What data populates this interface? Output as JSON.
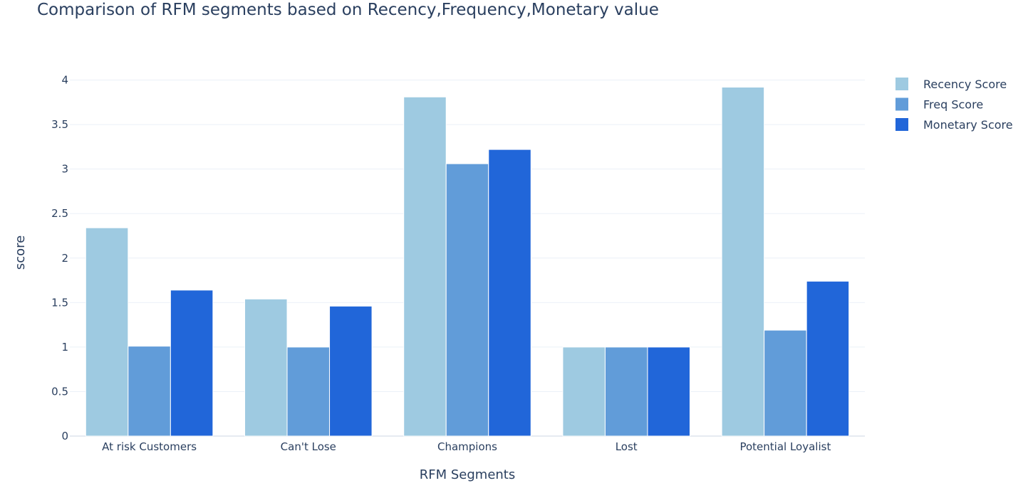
{
  "chart_data": {
    "type": "bar",
    "title": "Comparison of RFM segments based on Recency,Frequency,Monetary value",
    "xlabel": "RFM Segments",
    "ylabel": "score",
    "categories": [
      "At risk Customers",
      "Can't Lose",
      "Champions",
      "Lost",
      "Potential Loyalist"
    ],
    "series": [
      {
        "name": "Recency Score",
        "color": "#9ecae1",
        "values": [
          2.34,
          1.54,
          3.81,
          1.0,
          3.92
        ]
      },
      {
        "name": "Freq Score",
        "color": "#619cd9",
        "values": [
          1.01,
          1.0,
          3.06,
          1.0,
          1.19
        ]
      },
      {
        "name": "Monetary Score",
        "color": "#2166d9",
        "values": [
          1.64,
          1.46,
          3.22,
          1.0,
          1.74
        ]
      }
    ],
    "ylim": [
      0,
      4.1
    ],
    "yticks": [
      0,
      0.5,
      1,
      1.5,
      2,
      2.5,
      3,
      3.5,
      4
    ],
    "ytick_labels": [
      "0",
      "0.5",
      "1",
      "1.5",
      "2",
      "2.5",
      "3",
      "3.5",
      "4"
    ],
    "grid": true,
    "legend_position": "top-right"
  }
}
